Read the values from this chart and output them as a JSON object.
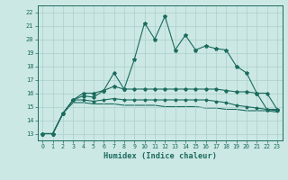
{
  "xlabel": "Humidex (Indice chaleur)",
  "bg_color": "#cce8e4",
  "grid_color": "#aad0cc",
  "line_color": "#1a6b5e",
  "xlim": [
    -0.5,
    23.5
  ],
  "ylim": [
    12.5,
    22.5
  ],
  "xticks": [
    0,
    1,
    2,
    3,
    4,
    5,
    6,
    7,
    8,
    9,
    10,
    11,
    12,
    13,
    14,
    15,
    16,
    17,
    18,
    19,
    20,
    21,
    22,
    23
  ],
  "yticks": [
    13,
    14,
    15,
    16,
    17,
    18,
    19,
    20,
    21,
    22
  ],
  "line1": [
    13.0,
    13.0,
    14.5,
    15.5,
    16.0,
    16.0,
    16.2,
    16.5,
    16.3,
    18.5,
    21.2,
    20.0,
    21.7,
    19.2,
    20.3,
    19.2,
    19.5,
    19.3,
    19.2,
    18.0,
    17.5,
    16.0,
    14.8,
    14.8
  ],
  "line2": [
    13.0,
    13.0,
    14.5,
    15.5,
    15.8,
    15.7,
    16.2,
    17.5,
    16.3,
    16.3,
    16.3,
    16.3,
    16.3,
    16.3,
    16.3,
    16.3,
    16.3,
    16.3,
    16.2,
    16.1,
    16.1,
    16.0,
    16.0,
    14.8
  ],
  "line3": [
    13.0,
    13.0,
    14.5,
    15.5,
    15.5,
    15.4,
    15.5,
    15.6,
    15.5,
    15.5,
    15.5,
    15.5,
    15.5,
    15.5,
    15.5,
    15.5,
    15.5,
    15.4,
    15.3,
    15.1,
    15.0,
    14.9,
    14.8,
    14.7
  ],
  "line4": [
    13.0,
    13.0,
    14.5,
    15.3,
    15.3,
    15.2,
    15.2,
    15.2,
    15.1,
    15.1,
    15.1,
    15.1,
    15.0,
    15.0,
    15.0,
    15.0,
    14.9,
    14.9,
    14.8,
    14.8,
    14.7,
    14.7,
    14.7,
    14.6
  ]
}
